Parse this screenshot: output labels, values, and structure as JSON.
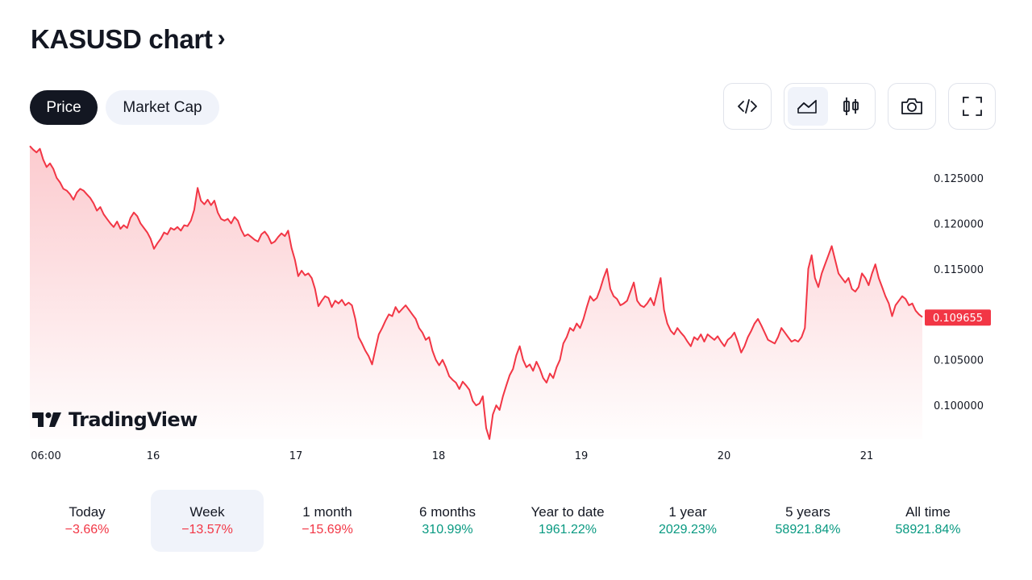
{
  "header": {
    "title": "KASUSD chart",
    "chevron": "›"
  },
  "tabs": [
    {
      "label": "Price",
      "active": true
    },
    {
      "label": "Market Cap",
      "active": false
    }
  ],
  "toolbar": {
    "embed_icon": "code-icon",
    "area_icon": "area-chart-icon",
    "candles_icon": "candlestick-icon",
    "snapshot_icon": "camera-icon",
    "fullscreen_icon": "fullscreen-icon"
  },
  "watermark": "TradingView",
  "chart_data": {
    "type": "area",
    "symbol": "KASUSD",
    "line_color": "#f23645",
    "fill_color": "#f23645",
    "x_ticks": [
      "06:00",
      "16",
      "17",
      "18",
      "19",
      "20",
      "21"
    ],
    "y_ticks": [
      "0.125000",
      "0.120000",
      "0.115000",
      "0.105000",
      "0.100000"
    ],
    "ylim": [
      0.0963,
      0.1295
    ],
    "last_price": "0.109655",
    "series": [
      {
        "values": [
          0.1285,
          0.1281,
          0.1278,
          0.1282,
          0.127,
          0.1262,
          0.1266,
          0.126,
          0.125,
          0.1245,
          0.1238,
          0.1236,
          0.1232,
          0.1226,
          0.1234,
          0.1238,
          0.1236,
          0.1232,
          0.1228,
          0.1222,
          0.1214,
          0.1218,
          0.121,
          0.1205,
          0.12,
          0.1196,
          0.1202,
          0.1194,
          0.1198,
          0.1195,
          0.1206,
          0.1212,
          0.1208,
          0.12,
          0.1195,
          0.119,
          0.1183,
          0.1172,
          0.1178,
          0.1183,
          0.119,
          0.1188,
          0.1195,
          0.1193,
          0.1196,
          0.1192,
          0.1198,
          0.1197,
          0.1203,
          0.1215,
          0.1239,
          0.1225,
          0.1221,
          0.1226,
          0.122,
          0.1225,
          0.1212,
          0.1205,
          0.1203,
          0.1205,
          0.12,
          0.1207,
          0.1203,
          0.1193,
          0.1186,
          0.1188,
          0.1185,
          0.1182,
          0.118,
          0.1188,
          0.1191,
          0.1186,
          0.1178,
          0.118,
          0.1185,
          0.1189,
          0.1186,
          0.1192,
          0.1173,
          0.116,
          0.1142,
          0.1148,
          0.1143,
          0.1145,
          0.114,
          0.1128,
          0.1109,
          0.1115,
          0.112,
          0.1118,
          0.1108,
          0.1115,
          0.1112,
          0.1116,
          0.111,
          0.1113,
          0.111,
          0.1095,
          0.1075,
          0.1068,
          0.106,
          0.1054,
          0.1045,
          0.1062,
          0.1078,
          0.1085,
          0.1093,
          0.11,
          0.1098,
          0.1108,
          0.1102,
          0.1106,
          0.111,
          0.1105,
          0.11,
          0.1095,
          0.1085,
          0.108,
          0.1072,
          0.1075,
          0.106,
          0.105,
          0.1044,
          0.105,
          0.1042,
          0.1032,
          0.1028,
          0.1025,
          0.1018,
          0.1026,
          0.1022,
          0.1017,
          0.1005,
          0.1,
          0.1002,
          0.101,
          0.0975,
          0.0963,
          0.099,
          0.1,
          0.0995,
          0.101,
          0.1022,
          0.1033,
          0.104,
          0.1055,
          0.1065,
          0.105,
          0.1042,
          0.1045,
          0.1038,
          0.1048,
          0.104,
          0.103,
          0.1025,
          0.1035,
          0.103,
          0.1042,
          0.105,
          0.1068,
          0.1075,
          0.1085,
          0.1082,
          0.109,
          0.1085,
          0.1095,
          0.1108,
          0.112,
          0.1115,
          0.1118,
          0.1128,
          0.114,
          0.115,
          0.1128,
          0.112,
          0.1117,
          0.111,
          0.1112,
          0.1115,
          0.1125,
          0.1135,
          0.1115,
          0.111,
          0.1108,
          0.1112,
          0.1118,
          0.111,
          0.1125,
          0.114,
          0.1105,
          0.109,
          0.1082,
          0.1078,
          0.1085,
          0.108,
          0.1076,
          0.107,
          0.1065,
          0.1075,
          0.1072,
          0.1078,
          0.107,
          0.1078,
          0.1075,
          0.1072,
          0.1076,
          0.107,
          0.1065,
          0.1072,
          0.1075,
          0.108,
          0.107,
          0.1058,
          0.1065,
          0.1075,
          0.1082,
          0.109,
          0.1095,
          0.1088,
          0.108,
          0.1072,
          0.107,
          0.1068,
          0.1075,
          0.1085,
          0.108,
          0.1075,
          0.107,
          0.1072,
          0.107,
          0.1075,
          0.1085,
          0.115,
          0.1165,
          0.114,
          0.113,
          0.1145,
          0.1155,
          0.1165,
          0.1175,
          0.116,
          0.1145,
          0.114,
          0.1135,
          0.114,
          0.1128,
          0.1125,
          0.113,
          0.1145,
          0.114,
          0.1132,
          0.1145,
          0.1155,
          0.114,
          0.113,
          0.112,
          0.1112,
          0.1098,
          0.111,
          0.1115,
          0.112,
          0.1117,
          0.111,
          0.1112,
          0.1104,
          0.11,
          0.1097
        ]
      }
    ]
  },
  "periods": [
    {
      "label": "Today",
      "value": "−3.66%",
      "dir": "neg",
      "selected": false
    },
    {
      "label": "Week",
      "value": "−13.57%",
      "dir": "neg",
      "selected": true
    },
    {
      "label": "1 month",
      "value": "−15.69%",
      "dir": "neg",
      "selected": false
    },
    {
      "label": "6 months",
      "value": "310.99%",
      "dir": "pos",
      "selected": false
    },
    {
      "label": "Year to date",
      "value": "1961.22%",
      "dir": "pos",
      "selected": false
    },
    {
      "label": "1 year",
      "value": "2029.23%",
      "dir": "pos",
      "selected": false
    },
    {
      "label": "5 years",
      "value": "58921.84%",
      "dir": "pos",
      "selected": false
    },
    {
      "label": "All time",
      "value": "58921.84%",
      "dir": "pos",
      "selected": false
    }
  ]
}
